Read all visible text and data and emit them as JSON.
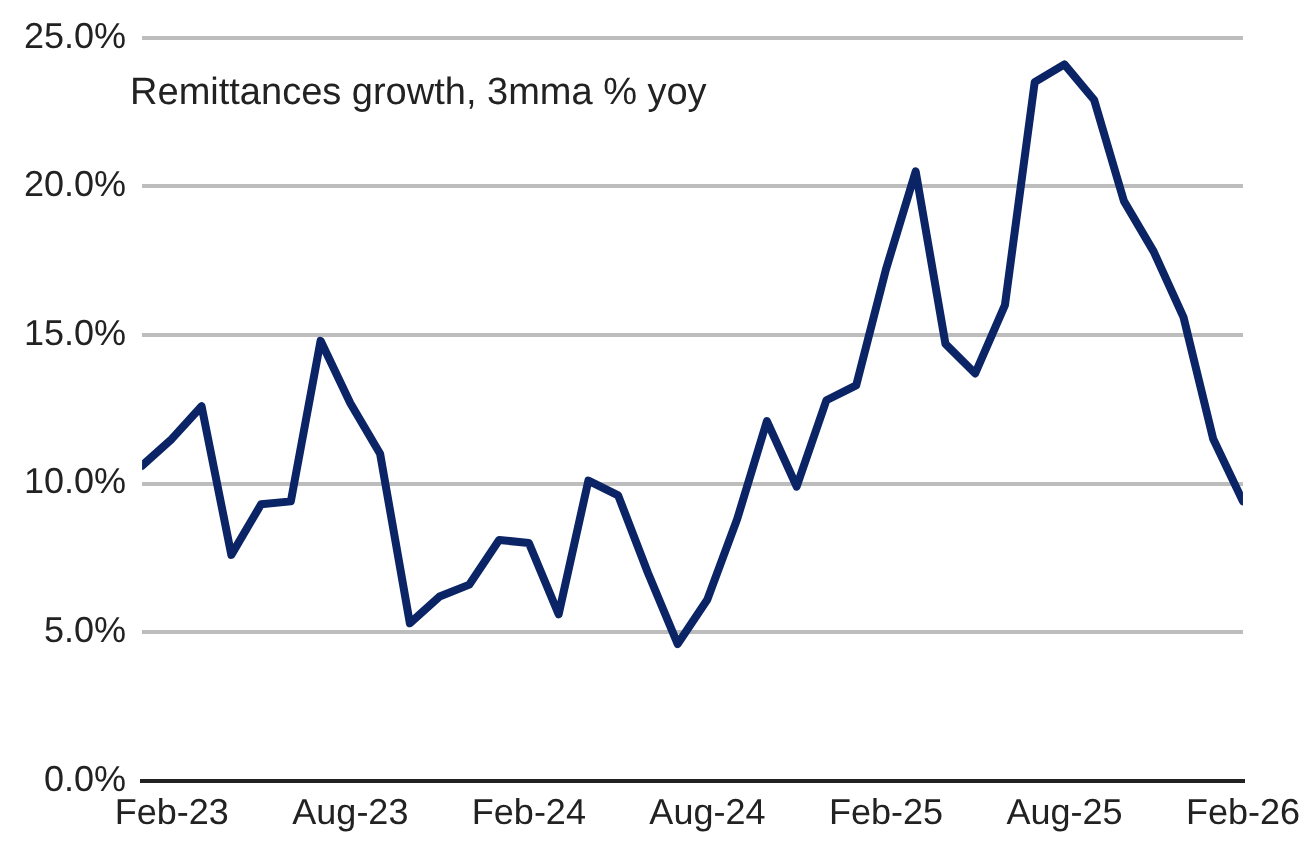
{
  "chart_data": {
    "type": "line",
    "title": "Remittances growth, 3mma % yoy",
    "x": [
      "2023-01",
      "2023-02",
      "2023-03",
      "2023-04",
      "2023-05",
      "2023-06",
      "2023-07",
      "2023-08",
      "2023-09",
      "2023-10",
      "2023-11",
      "2023-12",
      "2024-01",
      "2024-02",
      "2024-03",
      "2024-04",
      "2024-05",
      "2024-06",
      "2024-07",
      "2024-08",
      "2024-09",
      "2024-10",
      "2024-11",
      "2024-12",
      "2025-01",
      "2025-02",
      "2025-03",
      "2025-04",
      "2025-05",
      "2025-06",
      "2025-07",
      "2025-08",
      "2025-09",
      "2025-10",
      "2025-11",
      "2025-12",
      "2026-01",
      "2026-02"
    ],
    "series": [
      {
        "color": "#0b2466",
        "values": [
          10.6,
          11.5,
          12.6,
          7.6,
          9.3,
          9.4,
          14.8,
          12.7,
          11.0,
          5.3,
          6.2,
          6.6,
          8.1,
          8.0,
          5.6,
          10.1,
          9.6,
          7.0,
          4.6,
          6.1,
          8.8,
          12.1,
          9.9,
          12.8,
          13.3,
          17.2,
          20.5,
          14.7,
          13.7,
          16.0,
          23.5,
          24.1,
          22.9,
          19.5,
          17.8,
          15.6,
          11.5,
          9.4
        ]
      }
    ],
    "xlim": [
      "2023-01",
      "2026-02"
    ],
    "xticks": [
      {
        "value": "2023-02",
        "label": "Feb-23"
      },
      {
        "value": "2023-08",
        "label": "Aug-23"
      },
      {
        "value": "2024-02",
        "label": "Feb-24"
      },
      {
        "value": "2024-08",
        "label": "Aug-24"
      },
      {
        "value": "2025-02",
        "label": "Feb-25"
      },
      {
        "value": "2025-08",
        "label": "Aug-25"
      },
      {
        "value": "2026-02",
        "label": "Feb-26"
      }
    ],
    "ylim": [
      0,
      25
    ],
    "yticks": [
      {
        "value": 0,
        "label": "0.0%"
      },
      {
        "value": 5,
        "label": "5.0%"
      },
      {
        "value": 10,
        "label": "10.0%"
      },
      {
        "value": 15,
        "label": "15.0%"
      },
      {
        "value": 20,
        "label": "20.0%"
      },
      {
        "value": 25,
        "label": "25.0%"
      }
    ],
    "grid": "y",
    "legend": false,
    "marker": "none",
    "line_style": "solid"
  }
}
